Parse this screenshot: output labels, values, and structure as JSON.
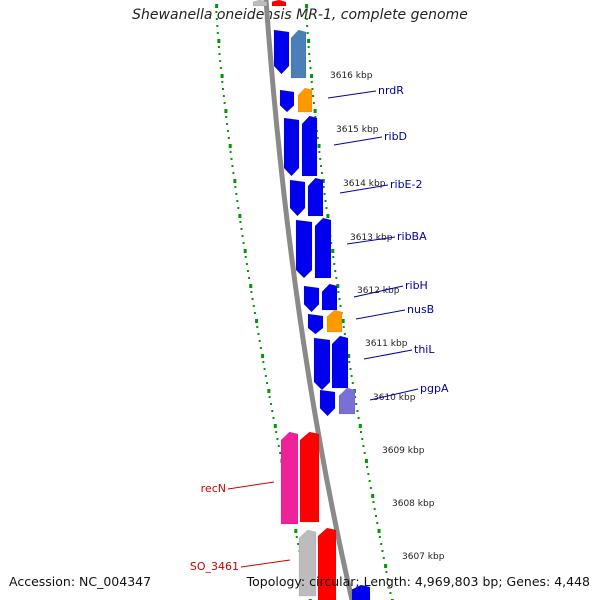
{
  "title": "Shewanella oneidensis MR-1, complete genome",
  "footer": {
    "accession": "Accession: NC_004347",
    "summary": "Topology: circular; Length: 4,969,803 bp; Genes: 4,448"
  },
  "colors": {
    "cds": "#0000ee",
    "cds_light": "#4b7fb8",
    "orange": "#ff9900",
    "purple": "#7a6fd6",
    "red": "#ff0000",
    "pink": "#ee2299",
    "gray": "#bcbcbc",
    "backbone": "#8a8a8a",
    "tick_green": "#009900",
    "label_blue": "#0000aa",
    "label_red": "#cc0000"
  },
  "ticks": [
    "3616 kbp",
    "3615 kbp",
    "3614 kbp",
    "3613 kbp",
    "3612 kbp",
    "3611 kbp",
    "3610 kbp",
    "3609 kbp",
    "3608 kbp",
    "3607 kbp"
  ],
  "gene_labels": [
    "nrdR",
    "ribD",
    "ribE-2",
    "ribBA",
    "ribH",
    "nusB",
    "thiL",
    "pgpA",
    "recN",
    "SO_3461"
  ]
}
